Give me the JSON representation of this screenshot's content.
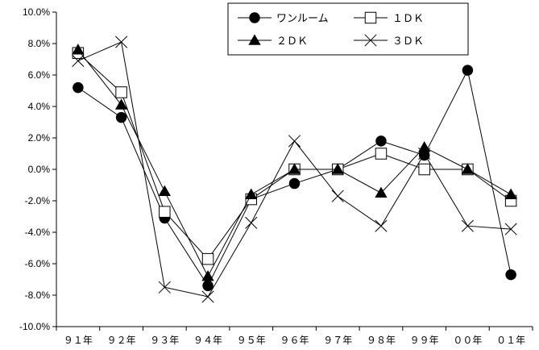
{
  "chart_data": {
    "type": "line",
    "title": "",
    "xlabel": "",
    "ylabel": "",
    "categories": [
      "９１年",
      "９２年",
      "９３年",
      "９４年",
      "９５年",
      "９６年",
      "９７年",
      "９８年",
      "９９年",
      "００年",
      "０１年"
    ],
    "ylim": [
      -10,
      10
    ],
    "y_ticks": [
      10,
      8,
      6,
      4,
      2,
      0,
      -2,
      -4,
      -6,
      -8,
      -10
    ],
    "y_tick_labels": [
      "10.0%",
      "8.0%",
      "6.0%",
      "4.0%",
      "2.0%",
      "0.0%",
      "-2.0%",
      "-4.0%",
      "-6.0%",
      "-8.0%",
      "-10.0%"
    ],
    "grid": false,
    "legend_position": "top-right",
    "series": [
      {
        "name": "ワンルーム",
        "marker": "circle",
        "values": [
          5.2,
          3.3,
          -3.1,
          -7.4,
          -1.9,
          -0.9,
          0.0,
          1.8,
          0.9,
          6.3,
          -6.7
        ]
      },
      {
        "name": "１ＤＫ",
        "marker": "square",
        "values": [
          7.4,
          4.9,
          -2.7,
          -5.7,
          -1.9,
          0.0,
          0.0,
          1.0,
          0.0,
          0.0,
          -2.0
        ]
      },
      {
        "name": "２ＤＫ",
        "marker": "triangle",
        "values": [
          7.6,
          4.1,
          -1.4,
          -6.8,
          -1.6,
          0.0,
          0.0,
          -1.5,
          1.4,
          0.0,
          -1.6
        ]
      },
      {
        "name": "３ＤＫ",
        "marker": "x",
        "values": [
          6.9,
          8.1,
          -7.5,
          -8.1,
          -3.4,
          1.8,
          -1.7,
          -3.6,
          1.0,
          -3.6,
          -3.8
        ]
      }
    ]
  }
}
